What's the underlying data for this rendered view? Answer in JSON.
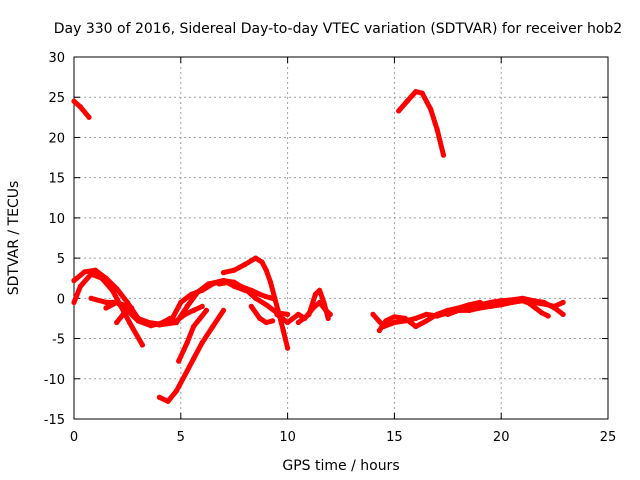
{
  "chart_data": {
    "type": "line",
    "title": "Day 330 of 2016, Sidereal Day-to-day VTEC variation (SDTVAR) for receiver hob2",
    "xlabel": "GPS time / hours",
    "ylabel": "SDTVAR / TECUs",
    "xlim": [
      0,
      25
    ],
    "ylim": [
      -15,
      30
    ],
    "xticks": [
      0,
      5,
      10,
      15,
      20,
      25
    ],
    "yticks": [
      -15,
      -10,
      -5,
      0,
      5,
      10,
      15,
      20,
      25,
      30
    ],
    "grid": true,
    "color": "#ff0000",
    "series": [
      {
        "name": "s1",
        "points": [
          [
            0,
            24.5
          ],
          [
            0.3,
            23.8
          ],
          [
            0.7,
            22.5
          ]
        ]
      },
      {
        "name": "s2",
        "points": [
          [
            15.2,
            23.3
          ],
          [
            15.6,
            24.5
          ],
          [
            16.0,
            25.7
          ],
          [
            16.3,
            25.5
          ],
          [
            16.7,
            23.5
          ],
          [
            17.0,
            21.0
          ],
          [
            17.3,
            17.8
          ]
        ]
      },
      {
        "name": "s3",
        "points": [
          [
            0,
            2.2
          ],
          [
            0.5,
            3.3
          ],
          [
            1.0,
            3.5
          ],
          [
            1.5,
            2.5
          ],
          [
            2.0,
            1.2
          ],
          [
            2.5,
            -0.5
          ],
          [
            3.0,
            -2.5
          ],
          [
            3.3,
            -3.0
          ],
          [
            4.0,
            -3.3
          ],
          [
            4.8,
            -3.0
          ],
          [
            5.3,
            -1.0
          ],
          [
            5.8,
            0.8
          ],
          [
            6.3,
            1.8
          ],
          [
            7.0,
            2.2
          ],
          [
            7.5,
            1.5
          ],
          [
            8.0,
            1.0
          ],
          [
            8.5,
            0.5
          ]
        ]
      },
      {
        "name": "s4",
        "points": [
          [
            0,
            -0.5
          ],
          [
            0.3,
            1.5
          ],
          [
            0.8,
            3.0
          ],
          [
            1.3,
            2.5
          ],
          [
            1.8,
            1.0
          ],
          [
            2.2,
            -1.0
          ],
          [
            2.6,
            -3.0
          ],
          [
            3.2,
            -5.8
          ]
        ]
      },
      {
        "name": "s5",
        "points": [
          [
            0.8,
            0
          ],
          [
            1.5,
            -0.5
          ],
          [
            2.0,
            -0.5
          ],
          [
            2.5,
            -1.0
          ],
          [
            3.0,
            -2.5
          ],
          [
            3.5,
            -3.0
          ],
          [
            4.0,
            -3.2
          ],
          [
            4.5,
            -2.5
          ]
        ]
      },
      {
        "name": "s6",
        "points": [
          [
            1.5,
            -1.2
          ],
          [
            2.0,
            -0.5
          ],
          [
            2.5,
            -1.5
          ],
          [
            3.0,
            -2.8
          ],
          [
            3.6,
            -3.4
          ],
          [
            4.2,
            -3.0
          ],
          [
            4.8,
            -2.8
          ],
          [
            5.2,
            -2.0
          ],
          [
            5.6,
            -1.5
          ],
          [
            6.0,
            -1.0
          ]
        ]
      },
      {
        "name": "s7",
        "points": [
          [
            2.0,
            -3.0
          ],
          [
            2.3,
            -2.0
          ],
          [
            2.7,
            -1.2
          ]
        ]
      },
      {
        "name": "s8",
        "points": [
          [
            4.0,
            -12.3
          ],
          [
            4.4,
            -12.8
          ],
          [
            4.8,
            -11.5
          ],
          [
            5.2,
            -9.5
          ],
          [
            5.6,
            -7.5
          ],
          [
            6.0,
            -5.5
          ],
          [
            6.5,
            -3.5
          ],
          [
            7.0,
            -1.5
          ]
        ]
      },
      {
        "name": "s9",
        "points": [
          [
            4.9,
            -7.8
          ],
          [
            5.3,
            -5.5
          ],
          [
            5.6,
            -3.5
          ],
          [
            5.9,
            -2.5
          ],
          [
            6.2,
            -1.5
          ]
        ]
      },
      {
        "name": "s10",
        "points": [
          [
            4.6,
            -2.5
          ],
          [
            5.0,
            -0.5
          ],
          [
            5.5,
            0.5
          ],
          [
            6.0,
            1.0
          ],
          [
            6.5,
            1.8
          ],
          [
            7.0,
            2.2
          ],
          [
            7.5,
            2.0
          ],
          [
            8.0,
            1.2
          ],
          [
            8.5,
            0
          ],
          [
            9.0,
            -0.8
          ],
          [
            9.5,
            -1.8
          ],
          [
            10.0,
            -2.0
          ]
        ]
      },
      {
        "name": "s11",
        "points": [
          [
            7.0,
            3.2
          ],
          [
            7.5,
            3.5
          ],
          [
            8.0,
            4.2
          ],
          [
            8.5,
            5.0
          ],
          [
            8.8,
            4.5
          ],
          [
            9.0,
            3.5
          ],
          [
            9.2,
            2.0
          ],
          [
            9.4,
            0
          ],
          [
            9.6,
            -2.0
          ],
          [
            9.8,
            -4.0
          ],
          [
            10.0,
            -6.2
          ]
        ]
      },
      {
        "name": "s12",
        "points": [
          [
            6.8,
            1.8
          ],
          [
            7.3,
            2.0
          ],
          [
            7.8,
            1.5
          ],
          [
            8.3,
            1.0
          ],
          [
            8.7,
            0.5
          ],
          [
            9.0,
            0.2
          ],
          [
            9.3,
            0
          ]
        ]
      },
      {
        "name": "s13",
        "points": [
          [
            8.3,
            -1.0
          ],
          [
            8.7,
            -2.5
          ],
          [
            9.0,
            -3.0
          ],
          [
            9.3,
            -2.8
          ]
        ]
      },
      {
        "name": "s14",
        "points": [
          [
            9.5,
            -2.0
          ],
          [
            10.0,
            -3.0
          ],
          [
            10.5,
            -2.0
          ],
          [
            10.8,
            -2.5
          ],
          [
            11.2,
            -1.2
          ],
          [
            11.5,
            -0.5
          ],
          [
            11.8,
            -1.5
          ],
          [
            12.0,
            -2.0
          ]
        ]
      },
      {
        "name": "s15",
        "points": [
          [
            10.5,
            -3.0
          ],
          [
            11.0,
            -2.0
          ],
          [
            11.3,
            0.5
          ],
          [
            11.5,
            1.0
          ],
          [
            11.7,
            -0.5
          ],
          [
            11.9,
            -2.5
          ]
        ]
      },
      {
        "name": "s16",
        "points": [
          [
            14.0,
            -2.0
          ],
          [
            14.5,
            -3.5
          ],
          [
            15.0,
            -3.0
          ],
          [
            15.5,
            -2.8
          ],
          [
            16.0,
            -2.5
          ],
          [
            16.5,
            -2.0
          ],
          [
            17.0,
            -2.2
          ],
          [
            17.5,
            -1.8
          ],
          [
            18.0,
            -1.5
          ],
          [
            18.5,
            -1.5
          ],
          [
            19.0,
            -1.2
          ],
          [
            19.5,
            -1.0
          ],
          [
            20.0,
            -0.8
          ],
          [
            20.5,
            -0.5
          ],
          [
            21.0,
            -0.3
          ],
          [
            21.5,
            -0.5
          ],
          [
            22.0,
            -0.7
          ],
          [
            22.5,
            -1.0
          ],
          [
            22.9,
            -0.5
          ]
        ]
      },
      {
        "name": "s17",
        "points": [
          [
            14.3,
            -4.0
          ],
          [
            14.6,
            -2.8
          ],
          [
            15.0,
            -2.3
          ],
          [
            15.5,
            -2.5
          ],
          [
            16.0,
            -3.5
          ],
          [
            16.5,
            -2.8
          ],
          [
            17.0,
            -2.0
          ],
          [
            17.5,
            -1.5
          ],
          [
            18.0,
            -1.2
          ],
          [
            18.5,
            -0.8
          ],
          [
            19.0,
            -0.5
          ],
          [
            19.3,
            -1.0
          ]
        ]
      },
      {
        "name": "s18",
        "points": [
          [
            17.5,
            -2.0
          ],
          [
            18.0,
            -1.5
          ],
          [
            18.5,
            -1.0
          ],
          [
            19.0,
            -0.8
          ],
          [
            19.5,
            -0.5
          ],
          [
            20.0,
            -0.3
          ],
          [
            20.5,
            -0.2
          ],
          [
            21.0,
            0
          ],
          [
            21.5,
            -0.3
          ],
          [
            22.0,
            -0.5
          ],
          [
            22.5,
            -1.2
          ],
          [
            22.9,
            -2.0
          ]
        ]
      },
      {
        "name": "s19",
        "points": [
          [
            20.5,
            -0.5
          ],
          [
            21.0,
            -0.3
          ],
          [
            21.3,
            -0.6
          ],
          [
            21.6,
            -1.2
          ],
          [
            21.9,
            -1.8
          ],
          [
            22.2,
            -2.2
          ]
        ]
      }
    ]
  }
}
